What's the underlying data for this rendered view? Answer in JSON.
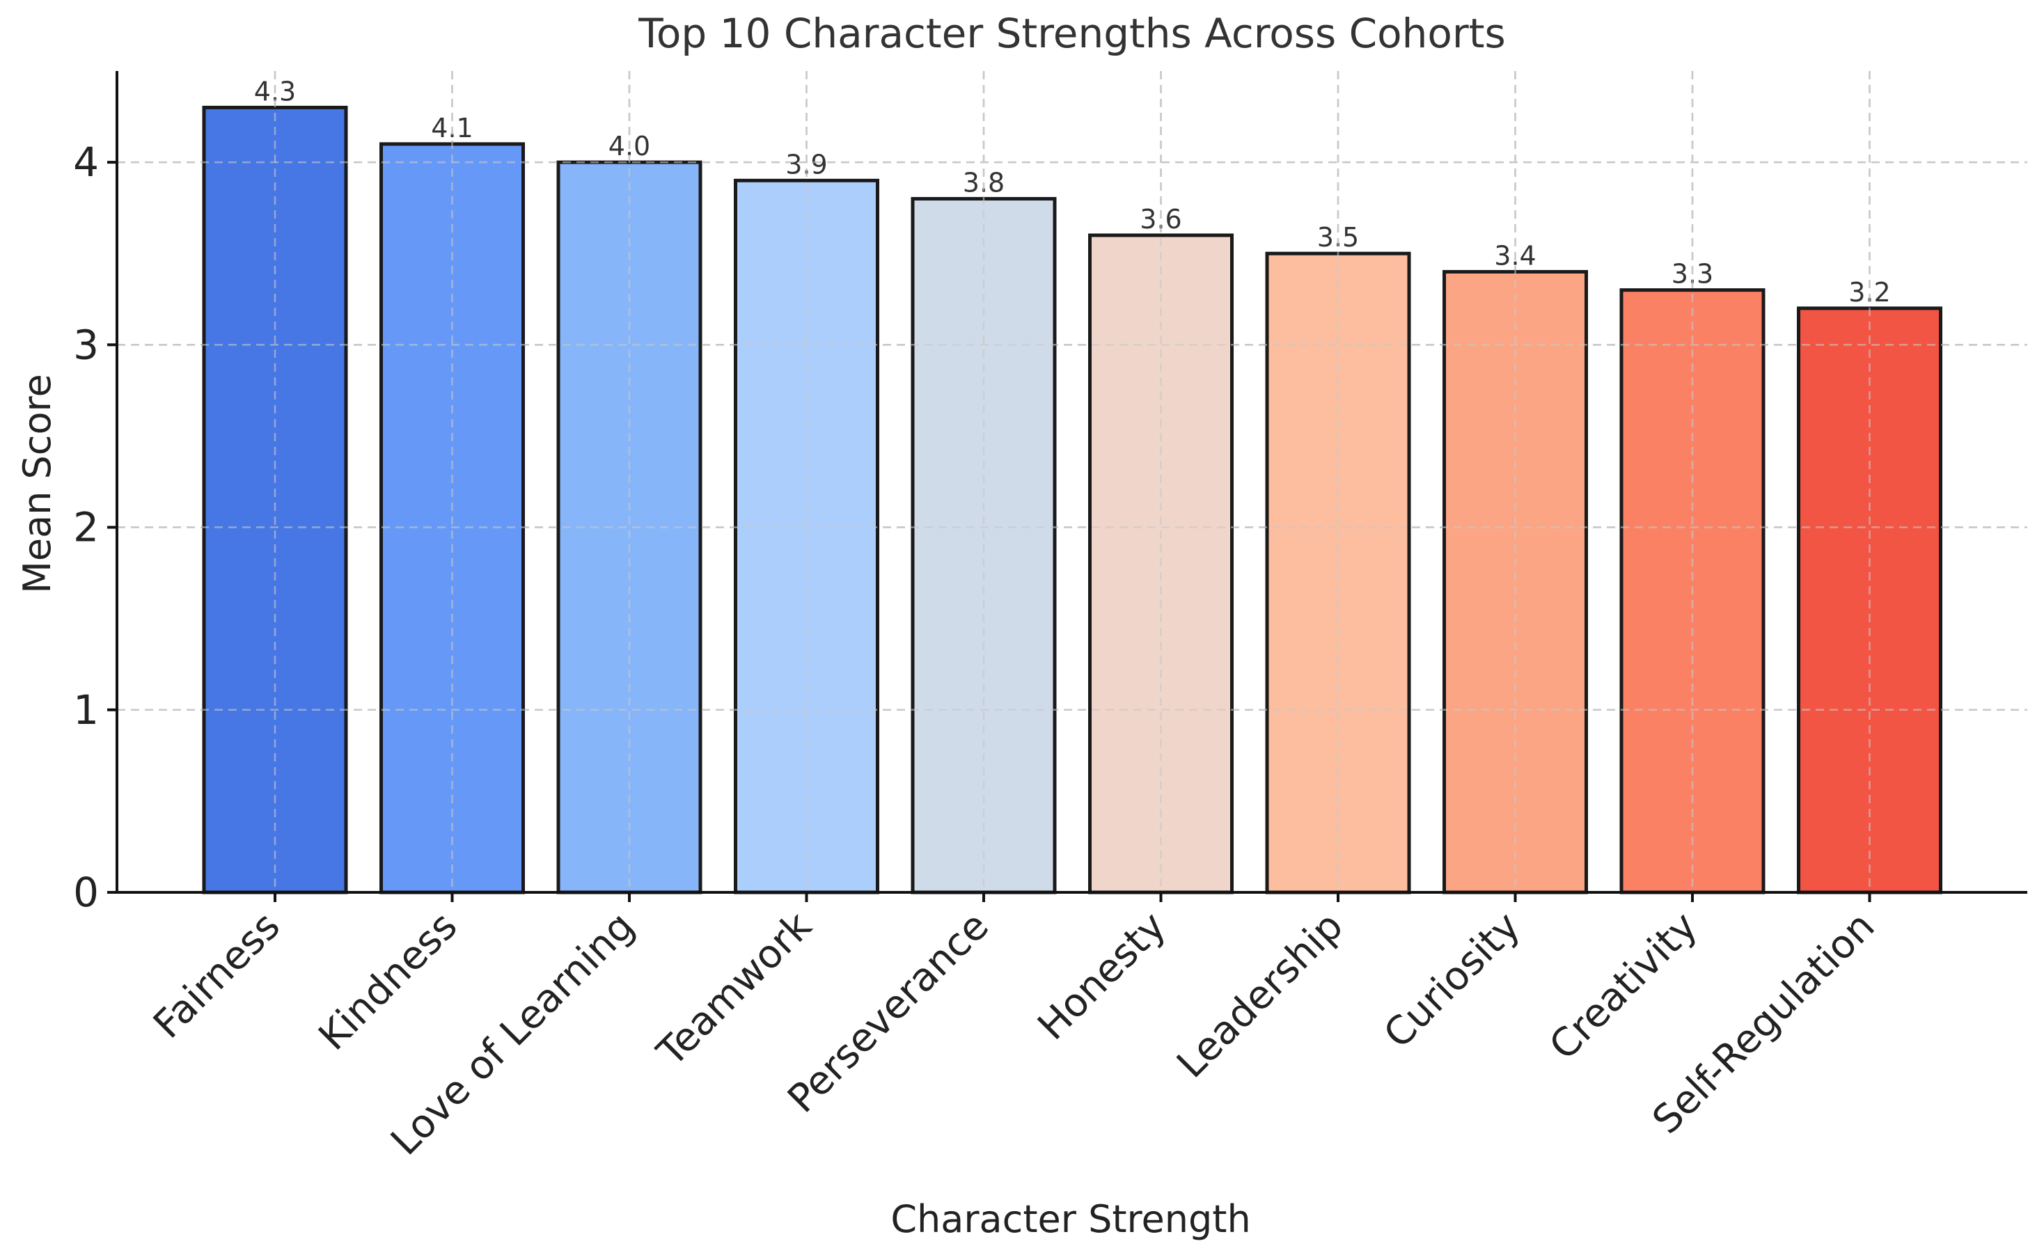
{
  "chart_data": {
    "type": "bar",
    "title": "Top 10 Character Strengths Across Cohorts",
    "xlabel": "Character Strength",
    "ylabel": "Mean Score",
    "categories": [
      "Fairness",
      "Kindness",
      "Love of Learning",
      "Teamwork",
      "Perseverance",
      "Honesty",
      "Leadership",
      "Curiosity",
      "Creativity",
      "Self-Regulation"
    ],
    "values": [
      4.3,
      4.1,
      4.0,
      3.9,
      3.8,
      3.6,
      3.5,
      3.4,
      3.3,
      3.2
    ],
    "value_labels": [
      "4.3",
      "4.1",
      "4.0",
      "3.9",
      "3.8",
      "3.6",
      "3.5",
      "3.4",
      "3.3",
      "3.2"
    ],
    "colors": [
      "#4677e4",
      "#6699f7",
      "#87b5fa",
      "#accefd",
      "#d0dbe9",
      "#f0d5cb",
      "#fdbea0",
      "#fba585",
      "#fb8165",
      "#f35544"
    ],
    "ylim": [
      0,
      4.5
    ],
    "yticks": [
      0,
      1,
      2,
      3,
      4
    ],
    "ytick_labels": [
      "0",
      "1",
      "2",
      "3",
      "4"
    ],
    "grid": true,
    "legend": "none"
  }
}
